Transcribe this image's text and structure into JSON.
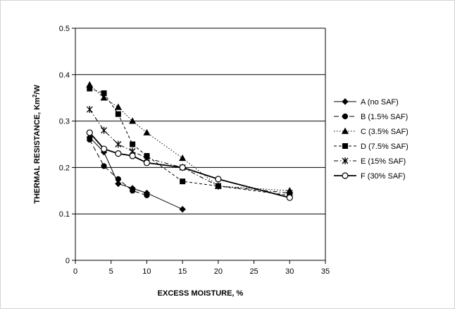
{
  "chart_data": {
    "type": "line",
    "title": "",
    "xlabel": "EXCESS MOISTURE, %",
    "ylabel_prefix": "THERMAL RESISTANCE, Km",
    "ylabel_sup": "2",
    "ylabel_suffix": "/W",
    "xlim": [
      0,
      35
    ],
    "ylim": [
      0,
      0.5
    ],
    "x_ticks": [
      "0",
      "5",
      "10",
      "15",
      "20",
      "25",
      "30",
      "35"
    ],
    "y_ticks": [
      "0",
      "0.1",
      "0.2",
      "0.3",
      "0.4",
      "0.5"
    ],
    "grid": "horizontal",
    "legend_position": "right",
    "series": [
      {
        "name": "A (no SAF)",
        "marker": "diamond",
        "dash": "solid",
        "fill": "filled",
        "x": [
          2,
          4,
          6,
          8,
          10,
          15
        ],
        "y": [
          0.265,
          0.233,
          0.165,
          0.155,
          0.145,
          0.11
        ]
      },
      {
        "name": "B (1.5% SAF)",
        "marker": "circle",
        "dash": "long-dash",
        "fill": "filled",
        "x": [
          2,
          4,
          6,
          8,
          10
        ],
        "y": [
          0.26,
          0.203,
          0.175,
          0.15,
          0.14
        ]
      },
      {
        "name": "C (3.5% SAF)",
        "marker": "triangle",
        "dash": "dotted",
        "fill": "filled",
        "x": [
          2,
          4,
          6,
          8,
          10,
          15,
          20,
          30
        ],
        "y": [
          0.378,
          0.35,
          0.33,
          0.3,
          0.275,
          0.22,
          0.16,
          0.15
        ]
      },
      {
        "name": "D (7.5% SAF)",
        "marker": "square",
        "dash": "short-dash",
        "fill": "filled",
        "x": [
          2,
          4,
          6,
          8,
          10,
          15,
          20,
          30
        ],
        "y": [
          0.37,
          0.36,
          0.315,
          0.25,
          0.225,
          0.17,
          0.16,
          0.14
        ]
      },
      {
        "name": "E (15% SAF)",
        "marker": "asterisk",
        "dash": "dash-dot",
        "fill": "none",
        "x": [
          2,
          4,
          6,
          8,
          10,
          15,
          20,
          30
        ],
        "y": [
          0.325,
          0.28,
          0.25,
          0.235,
          0.22,
          0.2,
          0.16,
          0.145
        ]
      },
      {
        "name": "F (30% SAF)",
        "marker": "circle",
        "dash": "solid-thick",
        "fill": "open",
        "x": [
          2,
          4,
          6,
          8,
          10,
          15,
          20,
          30
        ],
        "y": [
          0.275,
          0.24,
          0.23,
          0.225,
          0.21,
          0.2,
          0.175,
          0.135
        ]
      }
    ]
  }
}
